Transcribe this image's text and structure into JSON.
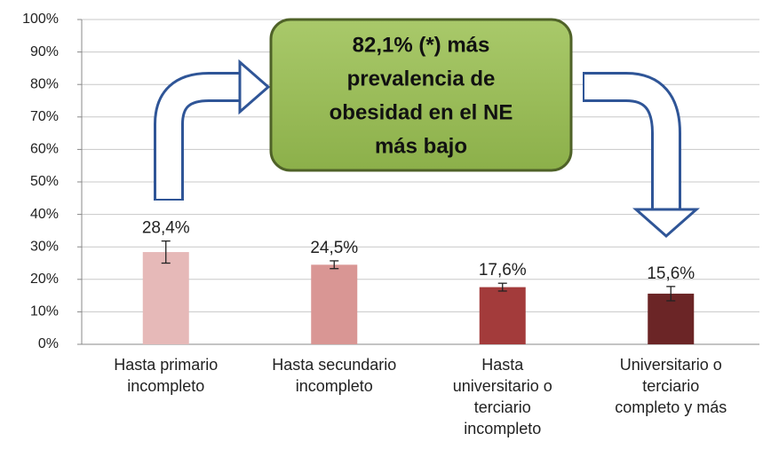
{
  "chart_data": {
    "type": "bar",
    "categories": [
      [
        "Hasta primario",
        "incompleto"
      ],
      [
        "Hasta secundario",
        "incompleto"
      ],
      [
        "Hasta",
        "universitario o",
        "terciario",
        "incompleto"
      ],
      [
        "Universitario o",
        "terciario",
        "completo y más"
      ]
    ],
    "values": [
      28.4,
      24.5,
      17.6,
      15.6
    ],
    "value_labels": [
      "28,4%",
      "24,5%",
      "17,6%",
      "15,6%"
    ],
    "errors": [
      3.4,
      1.2,
      1.2,
      2.2
    ],
    "colors": [
      "#e6b9b8",
      "#d99694",
      "#a33b3b",
      "#6b2526"
    ],
    "ylim": [
      0,
      100
    ],
    "yticks": [
      {
        "value": 0,
        "label": "0%"
      },
      {
        "value": 10,
        "label": "10%"
      },
      {
        "value": 20,
        "label": "20%"
      },
      {
        "value": 30,
        "label": "30%"
      },
      {
        "value": 40,
        "label": "40%"
      },
      {
        "value": 50,
        "label": "50%"
      },
      {
        "value": 60,
        "label": "60%"
      },
      {
        "value": 70,
        "label": "70%"
      },
      {
        "value": 80,
        "label": "80%"
      },
      {
        "value": 90,
        "label": "90%"
      },
      {
        "value": 100,
        "label": "100%"
      }
    ],
    "grid": true,
    "annotation": [
      "82,1% (*) más",
      "prevalencia de",
      "obesidad en el NE",
      "más bajo"
    ]
  }
}
